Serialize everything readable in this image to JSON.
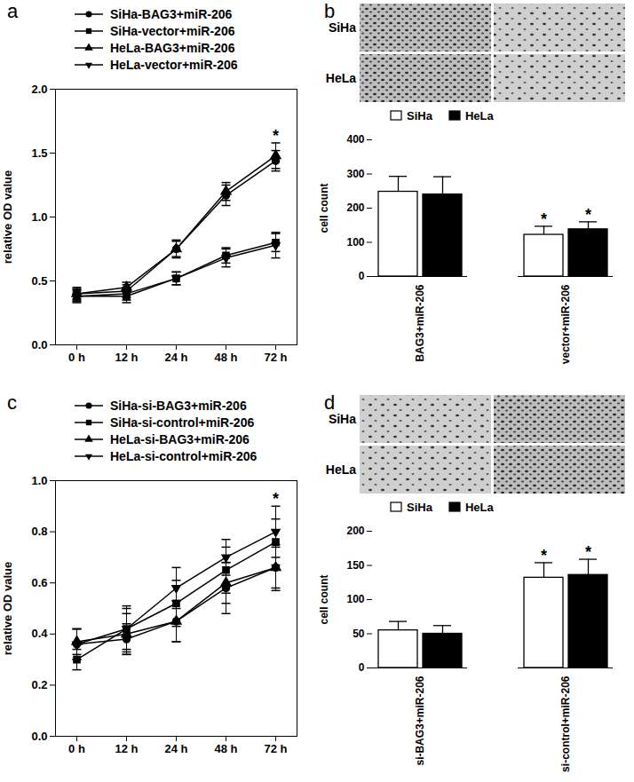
{
  "chart_data": [
    {
      "panel": "a",
      "type": "line",
      "y_label": "relative OD value",
      "legend": "top-left",
      "x": [
        "0 h",
        "12 h",
        "24 h",
        "48 h",
        "72 h"
      ],
      "ylim": [
        0,
        2
      ],
      "yticks": [
        {
          "value": 0,
          "label": "0.0"
        },
        {
          "value": 0.5,
          "label": "0.5"
        },
        {
          "value": 1,
          "label": "1.0"
        },
        {
          "value": 1.5,
          "label": "1.5"
        },
        {
          "value": 2,
          "label": "2.0"
        }
      ],
      "series": [
        {
          "name": "SiHa-BAG3+miR-206",
          "color": "#000000",
          "marker": "circle",
          "values": [
            0.4,
            0.42,
            0.75,
            1.17,
            1.44
          ],
          "errors": [
            0.04,
            0.05,
            0.06,
            0.08,
            0.08
          ]
        },
        {
          "name": "SiHa-vector+miR-206",
          "color": "#000000",
          "marker": "square",
          "values": [
            0.38,
            0.38,
            0.52,
            0.7,
            0.8
          ],
          "errors": [
            0.05,
            0.05,
            0.05,
            0.06,
            0.07
          ]
        },
        {
          "name": "HeLa-BAG3+miR-206",
          "color": "#000000",
          "marker": "triangle",
          "values": [
            0.4,
            0.45,
            0.75,
            1.2,
            1.48
          ],
          "errors": [
            0.05,
            0.04,
            0.07,
            0.07,
            0.1
          ]
        },
        {
          "name": "HeLa-vector+miR-206",
          "color": "#000000",
          "marker": "triangle-down",
          "values": [
            0.38,
            0.4,
            0.52,
            0.68,
            0.78
          ],
          "errors": [
            0.04,
            0.05,
            0.05,
            0.07,
            0.1
          ]
        }
      ],
      "annotations": [
        {
          "x": "72 h",
          "text": "*"
        }
      ]
    },
    {
      "panel": "b",
      "type": "bar",
      "y_label": "cell count",
      "legend": "top-left",
      "image_labels": [
        "SiHa",
        "HeLa"
      ],
      "categories": [
        "BAG3+miR-206",
        "vector+miR-206"
      ],
      "ylim": [
        0,
        400
      ],
      "yticks": [
        0,
        100,
        200,
        300,
        400
      ],
      "series": [
        {
          "name": "SiHa",
          "color": "#ffffff",
          "values": [
            248,
            122
          ],
          "errors": [
            45,
            25
          ]
        },
        {
          "name": "HeLa",
          "color": "#000000",
          "values": [
            240,
            138
          ],
          "errors": [
            52,
            22
          ]
        }
      ],
      "annotations": [
        {
          "category": "vector+miR-206",
          "series": "SiHa",
          "text": "*"
        },
        {
          "category": "vector+miR-206",
          "series": "HeLa",
          "text": "*"
        }
      ]
    },
    {
      "panel": "c",
      "type": "line",
      "y_label": "relative OD value",
      "legend": "top-left",
      "x": [
        "0 h",
        "12 h",
        "24 h",
        "48 h",
        "72 h"
      ],
      "ylim": [
        0,
        1
      ],
      "yticks": [
        {
          "value": 0,
          "label": "0.0"
        },
        {
          "value": 0.2,
          "label": "0.2"
        },
        {
          "value": 0.4,
          "label": "0.4"
        },
        {
          "value": 0.6,
          "label": "0.6"
        },
        {
          "value": 0.8,
          "label": "0.8"
        },
        {
          "value": 1,
          "label": "1.0"
        }
      ],
      "series": [
        {
          "name": "SiHa-si-BAG3+miR-206",
          "color": "#000000",
          "marker": "circle",
          "values": [
            0.36,
            0.38,
            0.45,
            0.58,
            0.66
          ],
          "errors": [
            0.06,
            0.06,
            0.08,
            0.1,
            0.09
          ]
        },
        {
          "name": "SiHa-si-control+miR-206",
          "color": "#000000",
          "marker": "square",
          "values": [
            0.3,
            0.42,
            0.52,
            0.65,
            0.76
          ],
          "errors": [
            0.04,
            0.09,
            0.09,
            0.09,
            0.09
          ]
        },
        {
          "name": "HeLa-si-BAG3+miR-206",
          "color": "#000000",
          "marker": "triangle",
          "values": [
            0.37,
            0.4,
            0.45,
            0.6,
            0.66
          ],
          "errors": [
            0.05,
            0.08,
            0.08,
            0.08,
            0.08
          ]
        },
        {
          "name": "HeLa-si-control+miR-206",
          "color": "#000000",
          "marker": "triangle-down",
          "values": [
            0.36,
            0.42,
            0.58,
            0.7,
            0.8
          ],
          "errors": [
            0.06,
            0.08,
            0.08,
            0.07,
            0.1
          ]
        }
      ],
      "annotations": [
        {
          "x": "72 h",
          "text": "*"
        }
      ]
    },
    {
      "panel": "d",
      "type": "bar",
      "y_label": "cell count",
      "legend": "top-left",
      "image_labels": [
        "SiHa",
        "HeLa"
      ],
      "categories": [
        "si-BAG3+miR-206",
        "si-control+miR-206"
      ],
      "ylim": [
        0,
        200
      ],
      "yticks": [
        0,
        50,
        100,
        150,
        200
      ],
      "series": [
        {
          "name": "SiHa",
          "color": "#ffffff",
          "values": [
            55,
            132
          ],
          "errors": [
            13,
            22
          ]
        },
        {
          "name": "HeLa",
          "color": "#000000",
          "values": [
            50,
            136
          ],
          "errors": [
            12,
            23
          ]
        }
      ],
      "annotations": [
        {
          "category": "si-control+miR-206",
          "series": "SiHa",
          "text": "*"
        },
        {
          "category": "si-control+miR-206",
          "series": "HeLa",
          "text": "*"
        }
      ]
    }
  ]
}
